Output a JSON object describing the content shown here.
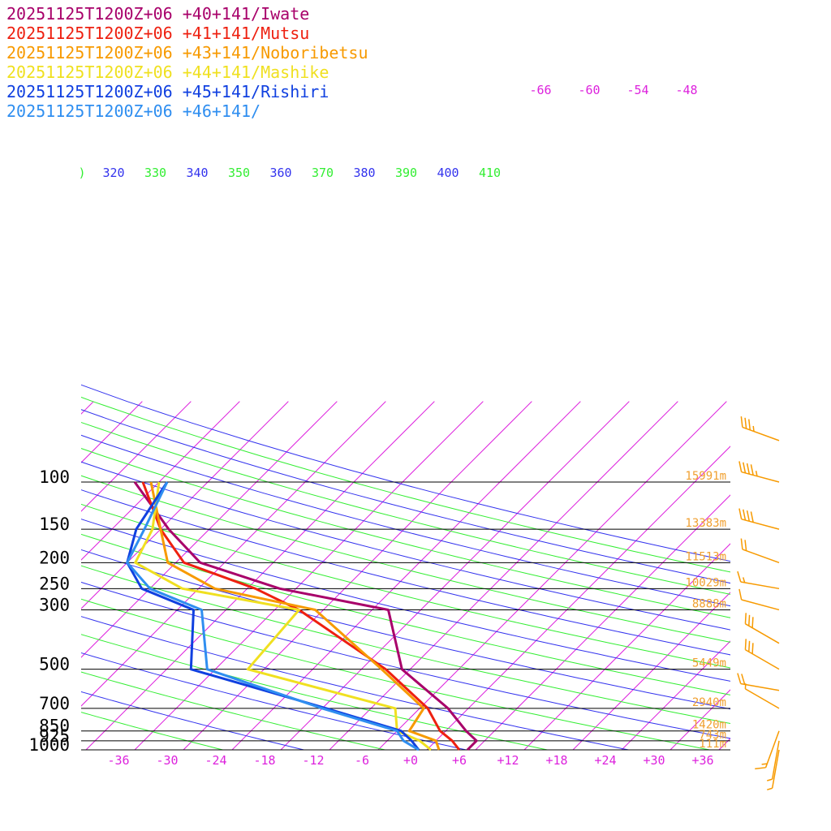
{
  "header": {
    "legend": [
      {
        "label": "20251125T1200Z+06 +40+141/Iwate",
        "color": "#a8006a"
      },
      {
        "label": "20251125T1200Z+06 +41+141/Mutsu",
        "color": "#ee2010"
      },
      {
        "label": "20251125T1200Z+06 +43+141/Noboribetsu",
        "color": "#f79a00"
      },
      {
        "label": "20251125T1200Z+06 +44+141/Mashike",
        "color": "#f0e020"
      },
      {
        "label": "20251125T1200Z+06 +45+141/Rishiri",
        "color": "#1040e0"
      },
      {
        "label": "20251125T1200Z+06 +46+141/",
        "color": "#2f8ef0"
      }
    ]
  },
  "chart_data": {
    "type": "line",
    "title": "",
    "xlabel": "",
    "ylabel": "",
    "x_ticks": [
      "-36",
      "-30",
      "-24",
      "-18",
      "-12",
      "-6",
      "+0",
      "+6",
      "+12",
      "+18",
      "+24",
      "+30",
      "+36"
    ],
    "x_tick_values": [
      -36,
      -30,
      -24,
      -18,
      -12,
      -6,
      0,
      6,
      12,
      18,
      24,
      30,
      36
    ],
    "upper_isotherm_labels": [
      "-66",
      "-60",
      "-54",
      "-48"
    ],
    "upper_isotherm_values": [
      -66,
      -60,
      -54,
      -48
    ],
    "theta_labels": [
      ")",
      "320",
      "330",
      "340",
      "350",
      "360",
      "370",
      "380",
      "390",
      "400",
      "410"
    ],
    "pressure_levels": [
      {
        "label": "100",
        "p": 100,
        "height": "15991m"
      },
      {
        "label": "150",
        "p": 150,
        "height": "13383m"
      },
      {
        "label": "200",
        "p": 200,
        "height": "11513m"
      },
      {
        "label": "250",
        "p": 250,
        "height": "10029m"
      },
      {
        "label": "300",
        "p": 300,
        "height": "8888m"
      },
      {
        "label": "500",
        "p": 500,
        "height": "5449m"
      },
      {
        "label": "700",
        "p": 700,
        "height": "2940m"
      },
      {
        "label": "850",
        "p": 850,
        "height": "1420m"
      },
      {
        "label": "925",
        "p": 925,
        "height": "743m"
      },
      {
        "label": "1000",
        "p": 1000,
        "height": "111m"
      }
    ],
    "grid_colors": {
      "isotherm": "#dd22dd",
      "dry_adiabat_a": "#33ee33",
      "dry_adiabat_b": "#3333ee",
      "isobar": "#000000",
      "wind": "#f79a00"
    },
    "series": [
      {
        "name": "20251125T1200Z+06 +40+141/Iwate",
        "color": "#a8006a",
        "points": [
          [
            1000,
            7
          ],
          [
            925,
            7
          ],
          [
            850,
            4.5
          ],
          [
            700,
            -0.5
          ],
          [
            500,
            -11
          ],
          [
            300,
            -20
          ],
          [
            250,
            -36
          ],
          [
            200,
            -49
          ],
          [
            150,
            -57
          ],
          [
            100,
            -67
          ]
        ]
      },
      {
        "name": "20251125T1200Z+06 +41+141/Mutsu",
        "color": "#ee2010",
        "points": [
          [
            1000,
            6
          ],
          [
            925,
            4
          ],
          [
            850,
            1.3
          ],
          [
            700,
            -3
          ],
          [
            500,
            -13
          ],
          [
            300,
            -31
          ],
          [
            250,
            -39
          ],
          [
            200,
            -51
          ],
          [
            150,
            -58
          ],
          [
            100,
            -66
          ]
        ]
      },
      {
        "name": "20251125T1200Z+06 +43+141/Noboribetsu",
        "color": "#f79a00",
        "points": [
          [
            1000,
            3.5
          ],
          [
            925,
            2
          ],
          [
            850,
            -2.5
          ],
          [
            700,
            -3.5
          ],
          [
            500,
            -13.5
          ],
          [
            300,
            -29
          ],
          [
            250,
            -44
          ],
          [
            200,
            -53
          ],
          [
            150,
            -58
          ],
          [
            100,
            -65
          ]
        ]
      },
      {
        "name": "20251125T1200Z+06 +44+141/Mashike",
        "color": "#f0e020",
        "points": [
          [
            1000,
            2.5
          ],
          [
            925,
            0
          ],
          [
            850,
            -4
          ],
          [
            700,
            -7
          ],
          [
            500,
            -30
          ],
          [
            300,
            -31
          ],
          [
            250,
            -48
          ],
          [
            200,
            -57
          ],
          [
            150,
            -59
          ],
          [
            100,
            -64
          ]
        ]
      },
      {
        "name": "20251125T1200Z+06 +45+141/Rishiri",
        "color": "#1040e0",
        "points": [
          [
            1000,
            1
          ],
          [
            925,
            -1
          ],
          [
            850,
            -3.5
          ],
          [
            700,
            -15.5
          ],
          [
            500,
            -37
          ],
          [
            300,
            -44
          ],
          [
            250,
            -53
          ],
          [
            200,
            -58
          ],
          [
            150,
            -61
          ],
          [
            100,
            -63
          ]
        ]
      },
      {
        "name": "20251125T1200Z+06 +46+141/",
        "color": "#2f8ef0",
        "points": [
          [
            1000,
            1
          ],
          [
            925,
            -2
          ],
          [
            850,
            -4
          ],
          [
            700,
            -16
          ],
          [
            500,
            -35
          ],
          [
            300,
            -43
          ],
          [
            250,
            -52
          ],
          [
            200,
            -58
          ],
          [
            150,
            -60
          ],
          [
            100,
            -63
          ]
        ]
      }
    ],
    "wind_barbs": [
      {
        "p": 70,
        "dir_deg": 290,
        "knots": 35
      },
      {
        "p": 100,
        "dir_deg": 285,
        "knots": 45
      },
      {
        "p": 150,
        "dir_deg": 285,
        "knots": 40
      },
      {
        "p": 200,
        "dir_deg": 290,
        "knots": 20
      },
      {
        "p": 250,
        "dir_deg": 280,
        "knots": 15
      },
      {
        "p": 300,
        "dir_deg": 285,
        "knots": 10
      },
      {
        "p": 400,
        "dir_deg": 300,
        "knots": 30
      },
      {
        "p": 500,
        "dir_deg": 300,
        "knots": 30
      },
      {
        "p": 600,
        "dir_deg": 280,
        "knots": 20
      },
      {
        "p": 700,
        "dir_deg": 300,
        "knots": 5
      },
      {
        "p": 850,
        "dir_deg": 200,
        "knots": 15
      },
      {
        "p": 925,
        "dir_deg": 190,
        "knots": 5
      },
      {
        "p": 1000,
        "dir_deg": 190,
        "knots": 5
      }
    ]
  }
}
